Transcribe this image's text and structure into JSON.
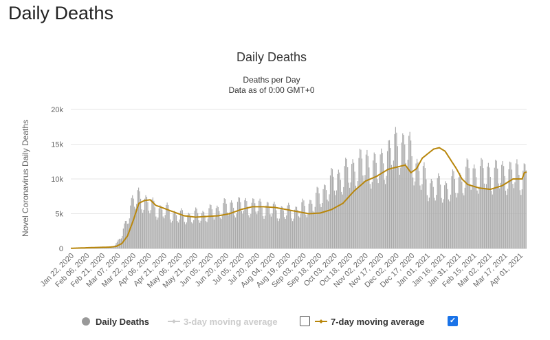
{
  "page": {
    "heading": "Daily Deaths"
  },
  "chart_data": {
    "type": "bar",
    "title": "Daily Deaths",
    "subtitle": "Deaths per Day",
    "subtitle2": "Data as of 0:00 GMT+0",
    "ylabel": "Novel Coronavirus Daily Deaths",
    "xlabel": "",
    "ylim": [
      0,
      20000
    ],
    "yticks": [
      "0",
      "5k",
      "10k",
      "15k",
      "20k"
    ],
    "xticks": [
      "Jan 22, 2020",
      "Feb 06, 2020",
      "Feb 21, 2020",
      "Mar 07, 2020",
      "Mar 22, 2020",
      "Apr 06, 2020",
      "Apr 21, 2020",
      "May 06, 2020",
      "May 21, 2020",
      "Jun 05, 2020",
      "Jun 20, 2020",
      "Jul 05, 2020",
      "Jul 20, 2020",
      "Aug 04, 2020",
      "Aug 19, 2020",
      "Sep 03, 2020",
      "Sep 18, 2020",
      "Oct 03, 2020",
      "Oct 18, 2020",
      "Nov 02, 2020",
      "Nov 17, 2020",
      "Dec 02, 2020",
      "Dec 17, 2020",
      "Jan 01, 2021",
      "Jan 16, 2021",
      "Jan 31, 2021",
      "Feb 15, 2021",
      "Mar 02, 2021",
      "Mar 17, 2021",
      "Apr 01, 2021"
    ],
    "grid": true,
    "colors": {
      "bars": "#aaaaaa",
      "ma7": "#b8860b",
      "ma3": "#cccccc",
      "grid": "#e6e6e6",
      "checkbox_checked": "#1a73e8"
    },
    "series": [
      {
        "name": "Daily Deaths",
        "type": "bar",
        "visible": true,
        "anchors": [
          [
            0,
            20
          ],
          [
            15,
            150
          ],
          [
            25,
            200
          ],
          [
            35,
            200
          ],
          [
            40,
            300
          ],
          [
            45,
            800
          ],
          [
            50,
            2000
          ],
          [
            55,
            4500
          ],
          [
            60,
            6500
          ],
          [
            65,
            7200
          ],
          [
            70,
            7000
          ],
          [
            75,
            6300
          ],
          [
            85,
            5500
          ],
          [
            95,
            5200
          ],
          [
            100,
            4800
          ],
          [
            110,
            4500
          ],
          [
            120,
            4600
          ],
          [
            130,
            4800
          ],
          [
            140,
            5200
          ],
          [
            150,
            5800
          ],
          [
            160,
            6000
          ],
          [
            170,
            6100
          ],
          [
            180,
            6000
          ],
          [
            190,
            5800
          ],
          [
            200,
            5400
          ],
          [
            210,
            5200
          ],
          [
            220,
            5300
          ],
          [
            230,
            5800
          ],
          [
            240,
            6800
          ],
          [
            250,
            8500
          ],
          [
            260,
            9800
          ],
          [
            270,
            10500
          ],
          [
            280,
            11500
          ],
          [
            290,
            12000
          ],
          [
            300,
            11200
          ],
          [
            310,
            13000
          ],
          [
            320,
            14500
          ],
          [
            325,
            14300
          ],
          [
            330,
            14000
          ],
          [
            340,
            11000
          ],
          [
            350,
            9000
          ],
          [
            360,
            8500
          ],
          [
            370,
            8600
          ],
          [
            380,
            9500
          ],
          [
            390,
            10500
          ],
          [
            445,
            10500
          ],
          [
            451,
            11000
          ]
        ]
      },
      {
        "name": "3-day moving average",
        "type": "line",
        "visible": false,
        "checked": false
      },
      {
        "name": "7-day moving average",
        "type": "line",
        "visible": true,
        "checked": true,
        "anchors": [
          [
            0,
            20
          ],
          [
            15,
            100
          ],
          [
            25,
            150
          ],
          [
            35,
            200
          ],
          [
            40,
            300
          ],
          [
            45,
            700
          ],
          [
            50,
            1800
          ],
          [
            55,
            4000
          ],
          [
            60,
            6500
          ],
          [
            65,
            6900
          ],
          [
            70,
            7000
          ],
          [
            75,
            6200
          ],
          [
            85,
            5600
          ],
          [
            95,
            5000
          ],
          [
            100,
            4700
          ],
          [
            110,
            4500
          ],
          [
            120,
            4600
          ],
          [
            130,
            4700
          ],
          [
            140,
            5000
          ],
          [
            150,
            5600
          ],
          [
            160,
            6000
          ],
          [
            170,
            6000
          ],
          [
            180,
            5900
          ],
          [
            190,
            5600
          ],
          [
            200,
            5300
          ],
          [
            210,
            5000
          ],
          [
            220,
            5100
          ],
          [
            230,
            5600
          ],
          [
            240,
            6500
          ],
          [
            250,
            8300
          ],
          [
            260,
            9700
          ],
          [
            270,
            10400
          ],
          [
            280,
            11400
          ],
          [
            290,
            11800
          ],
          [
            295,
            12000
          ],
          [
            300,
            10900
          ],
          [
            305,
            11500
          ],
          [
            310,
            13000
          ],
          [
            320,
            14300
          ],
          [
            325,
            14500
          ],
          [
            330,
            14000
          ],
          [
            340,
            11500
          ],
          [
            345,
            10000
          ],
          [
            350,
            9200
          ],
          [
            360,
            8700
          ],
          [
            370,
            8500
          ],
          [
            380,
            9000
          ],
          [
            390,
            10000
          ],
          [
            398,
            10000
          ],
          [
            400,
            10900
          ],
          [
            402,
            11000
          ]
        ]
      }
    ]
  }
}
